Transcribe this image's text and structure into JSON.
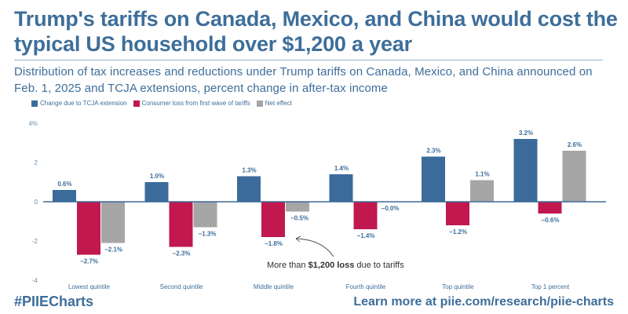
{
  "header": {
    "title": "Trump's tariffs on Canada, Mexico, and China would cost the typical US household over $1,200 a year",
    "subtitle": "Distribution of tax increases and reductions under Trump tariffs on Canada, Mexico, and China announced on Feb. 1, 2025 and TCJA extensions, percent change in after-tax income"
  },
  "footer": {
    "hashtag": "#PIIECharts",
    "link_text": "Learn more at piie.com/research/piie-charts"
  },
  "colors": {
    "tcja": "#3b6b9a",
    "tariff": "#c0184f",
    "net": "#a6a6a6",
    "text": "#3d6e9a",
    "axis": "#3b6b9a"
  },
  "chart_data": {
    "type": "bar",
    "title": "Trump's tariffs on Canada, Mexico, and China would cost the typical US household over $1,200 a year",
    "xlabel": "",
    "ylabel": "",
    "ylim": [
      -4,
      4
    ],
    "yticks": [
      4,
      2,
      0,
      -2,
      -4
    ],
    "ytick_labels": [
      "4%",
      "2",
      "0",
      "-2",
      "-4"
    ],
    "grid": false,
    "legend_position": "top-left",
    "categories": [
      "Lowest quintile",
      "Second quintile",
      "Middle quintile",
      "Fourth quintile",
      "Top quintile",
      "Top 1 percent"
    ],
    "series": [
      {
        "name": "Change due to TCJA extension",
        "color": "#3b6b9a",
        "values": [
          0.6,
          1.0,
          1.3,
          1.4,
          2.3,
          3.2
        ],
        "labels": [
          "0.6%",
          "1.0%",
          "1.3%",
          "1.4%",
          "2.3%",
          "3.2%"
        ]
      },
      {
        "name": "Consumer loss from first wave of tariffs",
        "color": "#c0184f",
        "values": [
          -2.7,
          -2.3,
          -1.8,
          -1.4,
          -1.2,
          -0.6
        ],
        "labels": [
          "−2.7%",
          "−2.3%",
          "−1.8%",
          "−1.4%",
          "−1.2%",
          "−0.6%"
        ]
      },
      {
        "name": "Net effect",
        "color": "#a6a6a6",
        "values": [
          -2.1,
          -1.3,
          -0.5,
          0.0,
          1.1,
          2.6
        ],
        "labels": [
          "−2.1%",
          "−1.3%",
          "−0.5%",
          "−0.0%",
          "1.1%",
          "2.6%"
        ]
      }
    ],
    "annotations": [
      {
        "text_prefix": "More than ",
        "text_bold": "$1,200 loss",
        "text_suffix": " due to tariffs",
        "points_to": "Middle quintile consumer loss from tariffs"
      }
    ]
  }
}
